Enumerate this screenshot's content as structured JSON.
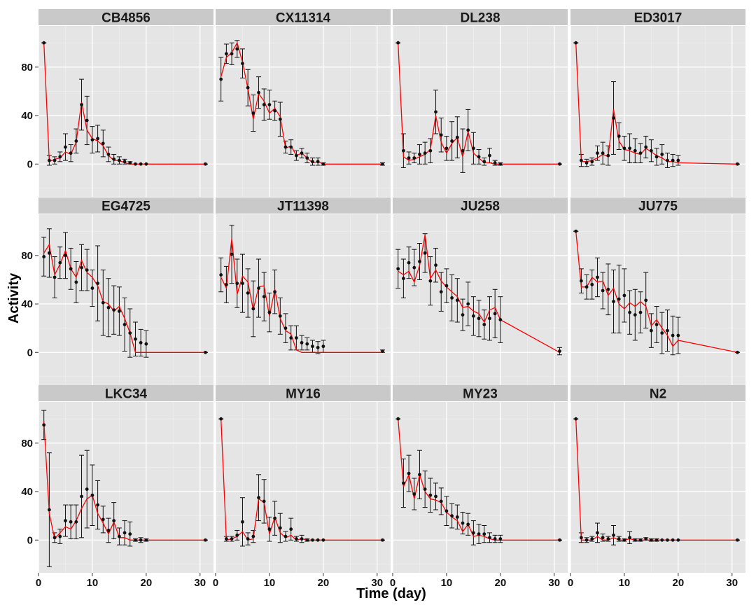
{
  "chart_data": {
    "type": "line",
    "title": "",
    "xlabel": "Time (day)",
    "ylabel": "Activity",
    "xlim": [
      0,
      32.5
    ],
    "ylim": [
      -27,
      114
    ],
    "x_ticks": [
      "0",
      "10",
      "20",
      "30"
    ],
    "y_ticks": [
      "0",
      "40",
      "80"
    ],
    "grid": true,
    "layout": "3 rows x 4 facets",
    "colors": {
      "panel_bg": "#e5e5e5",
      "strip_bg": "#c9c9c9",
      "grid": "#ffffff",
      "fit_line": "#ff0000",
      "points": "#111111"
    },
    "facets": [
      {
        "name": "CB4856",
        "x": [
          1,
          2,
          3,
          4,
          5,
          6,
          7,
          8,
          9,
          10,
          11,
          12,
          13,
          14,
          15,
          16,
          17,
          18,
          19,
          20,
          31
        ],
        "mean": [
          100,
          3,
          3,
          6,
          14,
          9,
          19,
          49,
          36,
          20,
          21,
          17,
          8,
          4,
          3,
          2,
          1,
          0,
          0,
          0,
          0
        ],
        "err": [
          0,
          4,
          3,
          4,
          11,
          7,
          10,
          21,
          20,
          11,
          11,
          11,
          6,
          4,
          3,
          2,
          1,
          0,
          0,
          0,
          0
        ],
        "fit": [
          100,
          2,
          4,
          5,
          10,
          8,
          18,
          51,
          28,
          21,
          19,
          15,
          7,
          3,
          3,
          1,
          0,
          0,
          0,
          0,
          0
        ]
      },
      {
        "name": "CX11314",
        "x": [
          1,
          2,
          3,
          4,
          5,
          6,
          7,
          8,
          9,
          10,
          11,
          12,
          13,
          14,
          15,
          16,
          17,
          18,
          19,
          20,
          31
        ],
        "mean": [
          70,
          91,
          91,
          95,
          83,
          63,
          42,
          59,
          49,
          49,
          44,
          37,
          14,
          14,
          7,
          9,
          5,
          2,
          2,
          0,
          0
        ],
        "err": [
          18,
          8,
          9,
          7,
          12,
          15,
          15,
          13,
          13,
          12,
          8,
          14,
          5,
          6,
          4,
          4,
          4,
          3,
          3,
          1,
          1
        ],
        "fit": [
          72,
          88,
          92,
          100,
          84,
          62,
          37,
          58,
          52,
          42,
          46,
          39,
          13,
          15,
          7,
          9,
          5,
          1,
          2,
          0,
          0
        ]
      },
      {
        "name": "DL238",
        "x": [
          1,
          2,
          3,
          4,
          5,
          6,
          7,
          8,
          9,
          10,
          11,
          12,
          13,
          14,
          15,
          16,
          17,
          18,
          19,
          20,
          31
        ],
        "mean": [
          100,
          11,
          5,
          5,
          8,
          9,
          11,
          43,
          24,
          13,
          19,
          22,
          11,
          28,
          13,
          6,
          2,
          7,
          1,
          0,
          0
        ],
        "err": [
          0,
          14,
          5,
          4,
          8,
          9,
          10,
          18,
          14,
          10,
          16,
          17,
          18,
          17,
          13,
          6,
          3,
          6,
          2,
          1,
          0
        ],
        "fit": [
          100,
          6,
          3,
          4,
          6,
          8,
          12,
          40,
          18,
          9,
          17,
          22,
          6,
          27,
          9,
          5,
          1,
          1,
          0,
          0,
          0
        ]
      },
      {
        "name": "ED3017",
        "x": [
          1,
          2,
          3,
          4,
          5,
          6,
          7,
          8,
          9,
          10,
          11,
          12,
          13,
          14,
          15,
          16,
          17,
          18,
          19,
          20,
          31
        ],
        "mean": [
          100,
          3,
          1,
          2,
          9,
          9,
          7,
          38,
          23,
          13,
          13,
          11,
          9,
          14,
          11,
          6,
          8,
          3,
          3,
          3,
          0
        ],
        "err": [
          0,
          5,
          3,
          3,
          6,
          9,
          8,
          30,
          11,
          10,
          12,
          10,
          8,
          9,
          9,
          7,
          8,
          6,
          5,
          4,
          0
        ],
        "fit": [
          100,
          2,
          2,
          3,
          5,
          8,
          6,
          45,
          19,
          12,
          11,
          9,
          8,
          13,
          10,
          7,
          5,
          2,
          2,
          1,
          0
        ]
      },
      {
        "name": "EG4725",
        "x": [
          1,
          2,
          3,
          4,
          5,
          6,
          7,
          8,
          9,
          10,
          11,
          12,
          13,
          14,
          15,
          16,
          17,
          18,
          19,
          20,
          31
        ],
        "mean": [
          79,
          82,
          62,
          74,
          80,
          69,
          58,
          70,
          68,
          53,
          57,
          41,
          37,
          35,
          34,
          23,
          16,
          11,
          8,
          7,
          0
        ],
        "err": [
          16,
          20,
          17,
          13,
          19,
          17,
          17,
          19,
          17,
          15,
          31,
          27,
          24,
          20,
          20,
          22,
          20,
          14,
          11,
          11,
          0
        ],
        "fit": [
          82,
          89,
          64,
          73,
          84,
          69,
          62,
          76,
          66,
          62,
          55,
          42,
          40,
          34,
          38,
          28,
          16,
          0,
          0,
          0,
          0
        ]
      },
      {
        "name": "JT11398",
        "x": [
          1,
          2,
          3,
          4,
          5,
          6,
          7,
          8,
          9,
          10,
          11,
          12,
          13,
          14,
          15,
          16,
          17,
          18,
          19,
          20,
          31
        ],
        "mean": [
          64,
          56,
          81,
          57,
          57,
          49,
          36,
          53,
          46,
          33,
          50,
          30,
          20,
          12,
          12,
          8,
          7,
          5,
          4,
          5,
          1
        ],
        "err": [
          14,
          15,
          24,
          20,
          24,
          20,
          23,
          24,
          20,
          16,
          18,
          15,
          12,
          10,
          10,
          6,
          5,
          5,
          5,
          5,
          1
        ],
        "fit": [
          62,
          53,
          94,
          48,
          63,
          58,
          35,
          54,
          55,
          30,
          52,
          28,
          18,
          15,
          2,
          0,
          0,
          0,
          0,
          0,
          0
        ]
      },
      {
        "name": "JU258",
        "x": [
          1,
          2,
          3,
          4,
          5,
          6,
          7,
          8,
          9,
          10,
          11,
          12,
          13,
          14,
          15,
          16,
          17,
          18,
          19,
          20,
          31
        ],
        "mean": [
          69,
          61,
          74,
          70,
          75,
          82,
          59,
          72,
          50,
          55,
          45,
          43,
          31,
          40,
          30,
          28,
          23,
          28,
          32,
          27,
          1
        ],
        "err": [
          16,
          16,
          13,
          15,
          15,
          16,
          20,
          14,
          16,
          14,
          19,
          18,
          13,
          18,
          16,
          15,
          12,
          18,
          20,
          19,
          3
        ],
        "fit": [
          67,
          64,
          67,
          58,
          72,
          97,
          61,
          68,
          59,
          54,
          50,
          46,
          37,
          38,
          34,
          32,
          25,
          35,
          37,
          27,
          0
        ]
      },
      {
        "name": "JU775",
        "x": [
          1,
          2,
          3,
          4,
          5,
          6,
          7,
          8,
          9,
          10,
          11,
          12,
          13,
          14,
          15,
          16,
          17,
          18,
          19,
          20,
          31
        ],
        "mean": [
          100,
          59,
          54,
          56,
          62,
          51,
          52,
          42,
          44,
          47,
          33,
          31,
          33,
          43,
          18,
          23,
          16,
          18,
          14,
          14,
          0
        ],
        "err": [
          0,
          10,
          10,
          12,
          16,
          15,
          21,
          26,
          28,
          22,
          18,
          21,
          17,
          23,
          14,
          15,
          17,
          17,
          16,
          15,
          0
        ],
        "fit": [
          100,
          54,
          54,
          62,
          58,
          59,
          47,
          53,
          40,
          36,
          41,
          38,
          42,
          38,
          22,
          27,
          20,
          14,
          5,
          10,
          0
        ]
      },
      {
        "name": "LKC34",
        "x": [
          1,
          2,
          3,
          4,
          5,
          6,
          7,
          8,
          9,
          10,
          11,
          12,
          13,
          14,
          15,
          16,
          17,
          18,
          19,
          20,
          31
        ],
        "mean": [
          95,
          25,
          2,
          3,
          16,
          15,
          15,
          36,
          42,
          37,
          29,
          17,
          8,
          16,
          3,
          6,
          5,
          0,
          0,
          0,
          0
        ],
        "err": [
          12,
          47,
          4,
          6,
          13,
          14,
          14,
          34,
          32,
          25,
          20,
          11,
          10,
          15,
          7,
          10,
          10,
          1,
          2,
          1,
          0
        ],
        "fit": [
          98,
          22,
          1,
          6,
          11,
          9,
          16,
          26,
          34,
          37,
          22,
          14,
          5,
          15,
          2,
          2,
          0,
          0,
          0,
          0,
          0
        ]
      },
      {
        "name": "MY16",
        "x": [
          1,
          2,
          3,
          4,
          5,
          6,
          7,
          8,
          9,
          10,
          11,
          12,
          13,
          14,
          15,
          16,
          17,
          18,
          19,
          20,
          31
        ],
        "mean": [
          100,
          1,
          1,
          4,
          15,
          1,
          3,
          35,
          32,
          9,
          18,
          10,
          3,
          9,
          1,
          1,
          0,
          0,
          0,
          0,
          0
        ],
        "err": [
          0,
          2,
          2,
          4,
          20,
          5,
          5,
          19,
          18,
          10,
          14,
          12,
          4,
          9,
          2,
          3,
          1,
          0,
          0,
          0,
          0
        ],
        "fit": [
          100,
          0,
          1,
          3,
          7,
          0,
          1,
          34,
          31,
          5,
          19,
          6,
          2,
          4,
          0,
          1,
          0,
          0,
          0,
          0,
          0
        ]
      },
      {
        "name": "MY23",
        "x": [
          1,
          2,
          3,
          4,
          5,
          6,
          7,
          8,
          9,
          10,
          11,
          12,
          13,
          14,
          15,
          16,
          17,
          18,
          19,
          20,
          31
        ],
        "mean": [
          100,
          47,
          55,
          38,
          54,
          42,
          37,
          36,
          32,
          24,
          20,
          19,
          14,
          13,
          6,
          5,
          5,
          2,
          1,
          1,
          0
        ],
        "err": [
          0,
          20,
          15,
          13,
          20,
          15,
          14,
          11,
          11,
          12,
          10,
          10,
          9,
          9,
          10,
          8,
          7,
          4,
          3,
          3,
          0
        ],
        "fit": [
          100,
          44,
          54,
          34,
          54,
          40,
          34,
          33,
          31,
          23,
          19,
          16,
          7,
          13,
          3,
          4,
          3,
          1,
          0,
          0,
          0
        ]
      },
      {
        "name": "N2",
        "x": [
          1,
          2,
          3,
          4,
          5,
          6,
          7,
          8,
          9,
          10,
          11,
          12,
          13,
          14,
          15,
          16,
          17,
          18,
          19,
          20,
          31
        ],
        "mean": [
          100,
          2,
          0,
          1,
          6,
          2,
          1,
          4,
          1,
          0,
          2,
          0,
          0,
          1,
          0,
          0,
          0,
          0,
          0,
          0,
          0
        ],
        "err": [
          0,
          4,
          2,
          2,
          8,
          3,
          2,
          8,
          2,
          1,
          5,
          1,
          1,
          1,
          1,
          1,
          0,
          0,
          0,
          0,
          0
        ],
        "fit": [
          100,
          0,
          0,
          0,
          3,
          0,
          0,
          2,
          0,
          0,
          1,
          0,
          0,
          0,
          0,
          0,
          0,
          0,
          0,
          0,
          0
        ]
      }
    ]
  }
}
